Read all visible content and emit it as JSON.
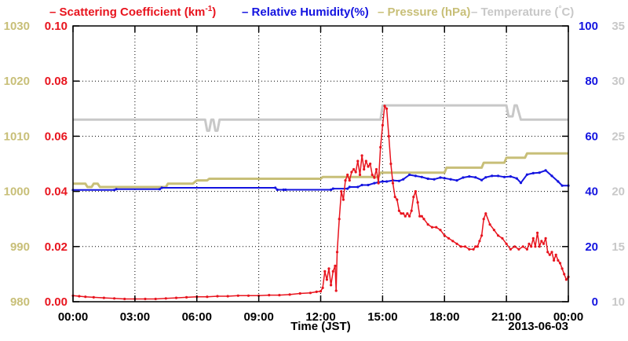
{
  "chart_data": {
    "type": "line",
    "xlabel": "Time (JST)",
    "x_ticks": [
      "00:00",
      "03:00",
      "06:00",
      "09:00",
      "12:00",
      "15:00",
      "18:00",
      "21:00",
      "00:00"
    ],
    "date_label": "2013-06-03",
    "xlim_hours": [
      0,
      24
    ],
    "grid": true,
    "legend_position": "top",
    "legend": [
      {
        "key": "scattering",
        "text_main": "Scattering Coefficient (km",
        "text_sup": "-1",
        "text_close": ")",
        "color": "#e8141e"
      },
      {
        "key": "humidity",
        "text_main": "Relative Humidity(%)",
        "color": "#1414e0"
      },
      {
        "key": "pressure",
        "text_main": "Pressure (hPa)",
        "color": "#c8bf78"
      },
      {
        "key": "temperature",
        "text_main": "Temperature (",
        "text_deg": "°",
        "text_close": "C)",
        "color": "#c8c8c8"
      }
    ],
    "axes": {
      "scattering": {
        "ylim": [
          0,
          0.1
        ],
        "ticks": [
          "0.00",
          "0.02",
          "0.04",
          "0.06",
          "0.08",
          "0.10"
        ],
        "color": "#e8141e"
      },
      "pressure": {
        "ylim": [
          980,
          1030
        ],
        "ticks": [
          "980",
          "990",
          "1000",
          "1010",
          "1020",
          "1030"
        ],
        "color": "#c8bf78"
      },
      "humidity": {
        "ylim": [
          0,
          100
        ],
        "ticks": [
          "0",
          "20",
          "40",
          "60",
          "80",
          "100"
        ],
        "color": "#1414e0"
      },
      "temperature": {
        "ylim": [
          10,
          35
        ],
        "ticks": [
          "10",
          "15",
          "20",
          "25",
          "30",
          "35"
        ],
        "color": "#c8c8c8"
      }
    },
    "series": {
      "temperature": {
        "x": [
          0,
          6.4,
          6.5,
          6.6,
          6.7,
          6.8,
          6.9,
          7.0,
          7.1,
          14.9,
          15.0,
          21.0,
          21.1,
          21.3,
          21.4,
          21.5,
          21.7,
          24
        ],
        "y": [
          26.5,
          26.5,
          25.5,
          25.5,
          26.5,
          26.5,
          25.5,
          25.5,
          26.5,
          26.5,
          27.8,
          27.8,
          26.8,
          26.8,
          27.8,
          27.8,
          26.5,
          26.5
        ]
      },
      "pressure": {
        "x": [
          0,
          0.6,
          0.7,
          0.9,
          1.0,
          1.2,
          1.3,
          1.5,
          1.6,
          4.5,
          4.6,
          5.8,
          6.0,
          6.5,
          6.6,
          12.0,
          12.1,
          14.8,
          14.9,
          18.0,
          18.1,
          19.8,
          19.9,
          20.9,
          21.0,
          21.9,
          22.0,
          24
        ],
        "y": [
          1001.4,
          1001.4,
          1000.8,
          1000.8,
          1001.4,
          1001.4,
          1000.8,
          1000.8,
          1000.8,
          1000.8,
          1001.4,
          1001.4,
          1002.0,
          1002.0,
          1002.3,
          1002.3,
          1002.6,
          1002.6,
          1003.4,
          1003.4,
          1004.3,
          1004.3,
          1005.2,
          1005.2,
          1006.1,
          1006.1,
          1006.9,
          1006.9
        ]
      },
      "humidity": {
        "x": [
          0,
          2.0,
          2.1,
          4.2,
          4.3,
          9.8,
          9.9,
          10.2,
          10.3,
          12.5,
          12.6,
          13.3,
          13.4,
          13.8,
          14.0,
          14.3,
          14.6,
          14.8,
          15.0,
          15.2,
          15.5,
          15.8,
          16.0,
          16.3,
          16.6,
          16.9,
          17.2,
          17.5,
          17.8,
          18.0,
          18.3,
          18.6,
          18.9,
          19.2,
          19.5,
          19.8,
          20.0,
          20.3,
          20.6,
          20.9,
          21.2,
          21.5,
          21.7,
          22.0,
          22.3,
          22.6,
          22.9,
          23.2,
          23.5,
          23.7,
          24
        ],
        "y": [
          40.5,
          40.5,
          40.8,
          40.8,
          41.3,
          41.3,
          40.6,
          40.6,
          40.6,
          40.6,
          41.0,
          41.0,
          41.6,
          41.6,
          42.3,
          42.3,
          43.0,
          43.3,
          43.6,
          43.6,
          44.0,
          43.8,
          44.4,
          46.0,
          45.6,
          45.2,
          44.6,
          44.4,
          45.0,
          44.8,
          44.4,
          44.0,
          45.0,
          45.4,
          45.1,
          44.1,
          45.1,
          45.6,
          45.6,
          45.2,
          45.4,
          44.7,
          43.1,
          46.1,
          46.6,
          46.8,
          47.6,
          45.6,
          43.6,
          42.1,
          42.1
        ]
      },
      "scattering": {
        "x": [
          0,
          0.3,
          0.6,
          1.0,
          1.5,
          2.0,
          2.5,
          3.0,
          3.5,
          4.0,
          4.5,
          5.0,
          5.5,
          6.0,
          6.5,
          7.0,
          7.5,
          8.0,
          8.5,
          9.0,
          9.5,
          10.0,
          10.5,
          11.0,
          11.5,
          11.8,
          12.0,
          12.1,
          12.2,
          12.3,
          12.4,
          12.5,
          12.6,
          12.7,
          12.75,
          12.8,
          12.9,
          13.0,
          13.1,
          13.2,
          13.3,
          13.4,
          13.5,
          13.6,
          13.7,
          13.8,
          13.9,
          14.0,
          14.1,
          14.2,
          14.3,
          14.4,
          14.5,
          14.6,
          14.7,
          14.8,
          14.9,
          15.0,
          15.1,
          15.2,
          15.3,
          15.4,
          15.5,
          15.6,
          15.7,
          15.8,
          15.9,
          16.0,
          16.1,
          16.2,
          16.3,
          16.4,
          16.5,
          16.6,
          16.7,
          16.8,
          16.9,
          17.0,
          17.2,
          17.4,
          17.6,
          17.8,
          18.0,
          18.2,
          18.4,
          18.6,
          18.8,
          19.0,
          19.2,
          19.4,
          19.5,
          19.6,
          19.7,
          19.8,
          19.9,
          20.0,
          20.2,
          20.4,
          20.6,
          20.8,
          21.0,
          21.2,
          21.4,
          21.6,
          21.8,
          22.0,
          22.1,
          22.2,
          22.3,
          22.4,
          22.5,
          22.6,
          22.7,
          22.8,
          22.9,
          23.0,
          23.1,
          23.2,
          23.3,
          23.4,
          23.5,
          23.6,
          23.7,
          23.8,
          23.9,
          24.0
        ],
        "y": [
          0.0022,
          0.002,
          0.0018,
          0.0016,
          0.0014,
          0.0012,
          0.001,
          0.001,
          0.001,
          0.001,
          0.0012,
          0.0014,
          0.0016,
          0.0018,
          0.0018,
          0.002,
          0.002,
          0.0022,
          0.0022,
          0.0022,
          0.0024,
          0.0024,
          0.0026,
          0.003,
          0.0032,
          0.0036,
          0.0038,
          0.005,
          0.011,
          0.008,
          0.012,
          0.006,
          0.011,
          0.013,
          0.004,
          0.018,
          0.03,
          0.04,
          0.037,
          0.044,
          0.046,
          0.044,
          0.047,
          0.048,
          0.047,
          0.051,
          0.046,
          0.053,
          0.048,
          0.051,
          0.049,
          0.05,
          0.046,
          0.045,
          0.048,
          0.043,
          0.056,
          0.064,
          0.071,
          0.07,
          0.06,
          0.05,
          0.043,
          0.038,
          0.037,
          0.033,
          0.032,
          0.032,
          0.031,
          0.032,
          0.031,
          0.033,
          0.038,
          0.04,
          0.036,
          0.031,
          0.031,
          0.03,
          0.028,
          0.027,
          0.027,
          0.026,
          0.024,
          0.023,
          0.022,
          0.021,
          0.02,
          0.02,
          0.019,
          0.019,
          0.02,
          0.02,
          0.022,
          0.024,
          0.03,
          0.032,
          0.028,
          0.026,
          0.024,
          0.023,
          0.021,
          0.019,
          0.02,
          0.019,
          0.02,
          0.019,
          0.021,
          0.02,
          0.023,
          0.02,
          0.025,
          0.02,
          0.022,
          0.021,
          0.023,
          0.018,
          0.017,
          0.018,
          0.015,
          0.017,
          0.015,
          0.014,
          0.012,
          0.01,
          0.008,
          0.009
        ]
      }
    }
  }
}
